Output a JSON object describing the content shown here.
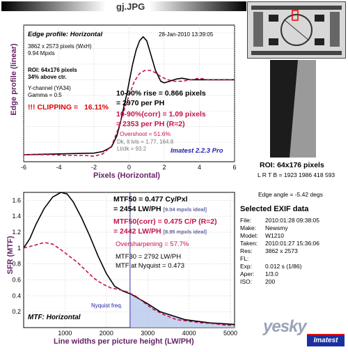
{
  "window": {
    "title": "gj.JPG"
  },
  "top_chart": {
    "header": "Edge profile: Horizontal",
    "date": "28-Jan-2010 13:39:05",
    "dims": "3862 x 2573 pixels (WxH)",
    "mpx": "9.94 Mpxls",
    "roi": "ROI: 64x176 pixels",
    "above": "34% above ctr.",
    "channel": "Y-channel (YA34)",
    "gamma": "Gamma = 0.5",
    "clipping_label": "!!! CLIPPING =",
    "clipping_value": "16.11%",
    "rise1": "10-90% rise = 0.866 pixels",
    "rise2": "= 2970 per PH",
    "corr1": "10-90%(corr) = 1.09 pixels",
    "corr2": "= 2353 per PH   (R=2)",
    "overshoot": "Overshoot = 51.6%",
    "dk": "Dk, lt lvls = 1.77, 164.8",
    "ltdk": "Lt/dk = 93.2",
    "brand": "Imatest 2.2.3 Pro"
  },
  "bottom_chart": {
    "header": "MTF: Horizontal",
    "mtf50": "MTF50 = 0.477 Cy/Pxl",
    "mtf50_lw": "= 2454 LW/PH",
    "mtf50_ideal": "[9.04 mpxls ideal]",
    "mtf50corr": "MTF50(corr) = 0.475 C/P",
    "mtf50corr_r": "(R=2)",
    "mtf50corr_lw": "= 2442 LW/PH",
    "mtf50corr_ideal": "[8.95 mpxls ideal]",
    "oversharp": "Oversharpening = 57.7%",
    "mtf30": "MTF30 = 2792 LW/PH",
    "nyq": "MTF at Nyquist = 0.473",
    "nyq_label": "Nyquist freq."
  },
  "side": {
    "roi": "ROI: 64x176 pixels",
    "lrtb": "L R T B = 1923 1986  418 593",
    "edge_angle": "Edge angle = -5.42 degs",
    "exif_title": "Selected EXIF data",
    "exif": [
      {
        "label": "File:",
        "value": "2010:01:28 09:38:05"
      },
      {
        "label": "Make:",
        "value": "Newsmy"
      },
      {
        "label": "Model:",
        "value": "W1210"
      },
      {
        "label": "Taken:",
        "value": "2010:01:27 15:36:06"
      },
      {
        "label": "Res:",
        "value": "3862 x 2573"
      },
      {
        "label": "FL:",
        "value": ""
      },
      {
        "label": "Exp:",
        "value": "0.012 s  (1/86)"
      },
      {
        "label": "Aper:",
        "value": "1/3.0"
      },
      {
        "label": "ISO:",
        "value": "200"
      }
    ],
    "watermark": "yesky",
    "imatest_logo": "Imatest"
  },
  "colors": {
    "black_series": "#000000",
    "corr_series": "#c4144a",
    "axis_label": "#662266",
    "nyq_fill": "#b8c8ec"
  },
  "chart_data": [
    {
      "type": "line",
      "title": "Edge profile: Horizontal",
      "xlabel": "Pixels (Horizontal)",
      "ylabel": "Edge profile (linear)",
      "xlim": [
        -6,
        6
      ],
      "x_ticks": [
        -6,
        -4,
        -2,
        0,
        2,
        4,
        6
      ],
      "grid": true,
      "series": [
        {
          "color": "#000000",
          "style": "solid",
          "x": [
            -6,
            -4,
            -2,
            -1.5,
            -1,
            -0.7,
            -0.5,
            -0.3,
            -0.1,
            0,
            0.2,
            0.4,
            0.6,
            0.8,
            1.0,
            1.2,
            1.5,
            1.8,
            2.0,
            2.3,
            2.7,
            3.0,
            3.5,
            4,
            5,
            6
          ],
          "y": [
            0.04,
            0.05,
            0.06,
            0.08,
            0.14,
            0.28,
            0.45,
            0.65,
            0.85,
            0.97,
            1.2,
            1.38,
            1.5,
            1.55,
            1.5,
            1.35,
            1.12,
            0.98,
            0.96,
            0.98,
            1.01,
            1.02,
            1.0,
            1.0,
            1.0,
            1.0
          ]
        },
        {
          "color": "#c4144a",
          "style": "dashed",
          "x": [
            -6,
            -4.5,
            -3.5,
            -2.5,
            -2,
            -1.5,
            -1,
            -0.6,
            -0.3,
            0,
            0.3,
            0.6,
            0.9,
            1.2,
            1.5,
            1.8,
            2.2,
            2.6,
            3.0,
            3.5,
            4,
            4.5,
            5,
            6
          ],
          "y": [
            0.04,
            0.04,
            0.03,
            0.03,
            0.02,
            0.05,
            0.15,
            0.38,
            0.6,
            0.8,
            0.98,
            1.08,
            1.12,
            1.12,
            1.09,
            1.04,
            1.0,
            0.98,
            0.98,
            1.0,
            1.02,
            1.0,
            1.0,
            1.0
          ]
        }
      ]
    },
    {
      "type": "line",
      "title": "MTF: Horizontal",
      "xlabel": "Line widths per picture height (LW/PH)",
      "ylabel": "SFR (MTF)",
      "xlim": [
        0,
        5100
      ],
      "ylim": [
        0,
        1.7
      ],
      "x_ticks": [
        1000,
        2000,
        3000,
        4000,
        5000
      ],
      "y_ticks": [
        0.2,
        0.4,
        0.6,
        0.8,
        1,
        1.2,
        1.4,
        1.6
      ],
      "nyquist": 2573,
      "grid": true,
      "series": [
        {
          "color": "#000000",
          "style": "solid",
          "x": [
            0,
            150,
            300,
            500,
            700,
            900,
            1050,
            1200,
            1400,
            1600,
            1800,
            2000,
            2200,
            2400,
            2600,
            2800,
            3000,
            3300,
            3600,
            3900,
            4200,
            4500,
            4800,
            5100
          ],
          "y": [
            1.0,
            1.12,
            1.3,
            1.5,
            1.64,
            1.7,
            1.68,
            1.58,
            1.38,
            1.15,
            0.9,
            0.68,
            0.52,
            0.46,
            0.42,
            0.36,
            0.3,
            0.2,
            0.15,
            0.1,
            0.08,
            0.06,
            0.05,
            0.04
          ]
        },
        {
          "color": "#c4144a",
          "style": "dashed",
          "x": [
            0,
            150,
            300,
            500,
            700,
            900,
            1100,
            1300,
            1500,
            1700,
            1900,
            2100,
            2300,
            2500,
            2700,
            2900,
            3100,
            3400,
            3700,
            4000,
            4300,
            4600,
            4900,
            5100
          ],
          "y": [
            1.0,
            1.02,
            1.04,
            1.07,
            1.05,
            0.98,
            0.9,
            0.82,
            0.72,
            0.62,
            0.55,
            0.5,
            0.48,
            0.45,
            0.4,
            0.32,
            0.24,
            0.16,
            0.1,
            0.08,
            0.06,
            0.05,
            0.03,
            0.03
          ]
        }
      ]
    }
  ]
}
